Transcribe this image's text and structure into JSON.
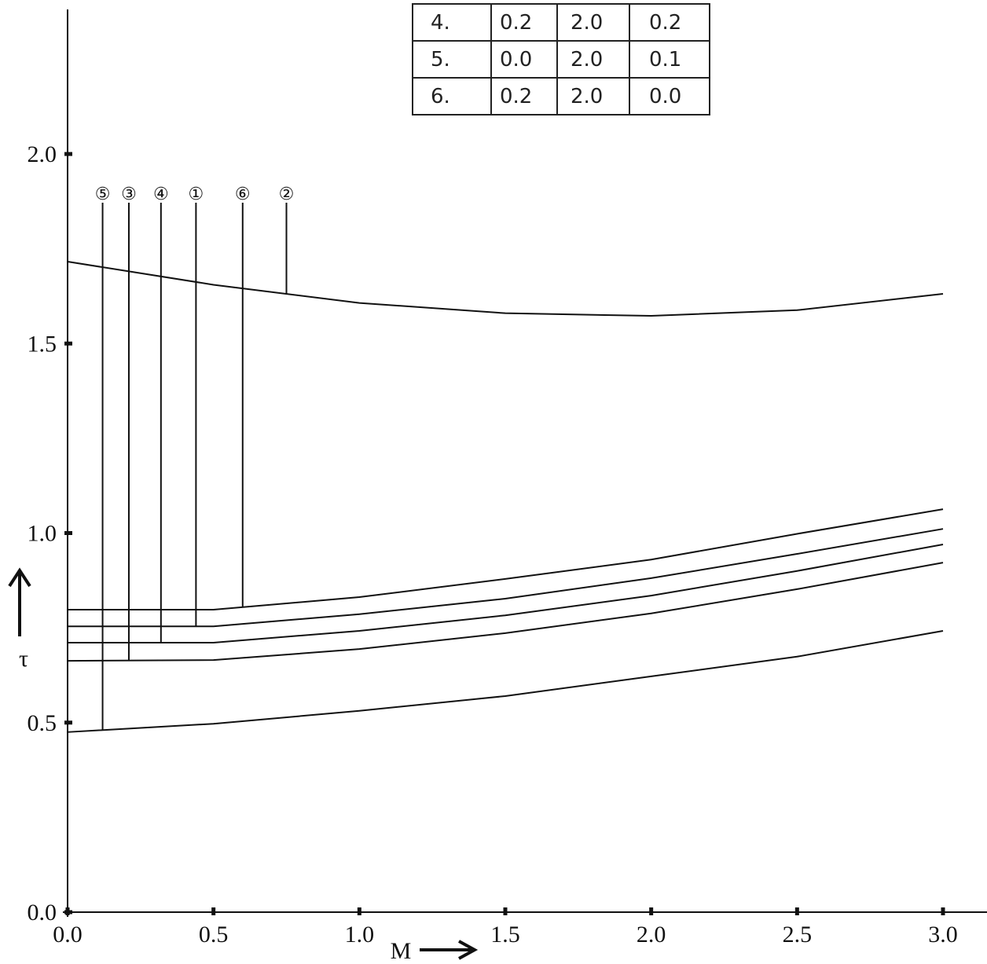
{
  "chart_data": {
    "type": "line",
    "x_label": "M",
    "y_label": "τ",
    "x": [
      0,
      0.5,
      1.0,
      1.5,
      2.0,
      2.5,
      3.0
    ],
    "series": [
      {
        "name": "⑤",
        "color": "#111111",
        "values": [
          0.475,
          0.497,
          0.531,
          0.57,
          0.622,
          0.674,
          0.742
        ]
      },
      {
        "name": "③",
        "color": "#111111",
        "values": [
          0.663,
          0.665,
          0.694,
          0.736,
          0.788,
          0.852,
          0.922
        ]
      },
      {
        "name": "④",
        "color": "#111111",
        "values": [
          0.711,
          0.711,
          0.742,
          0.783,
          0.835,
          0.9,
          0.97
        ]
      },
      {
        "name": "①",
        "color": "#111111",
        "values": [
          0.754,
          0.754,
          0.786,
          0.827,
          0.881,
          0.945,
          1.011
        ]
      },
      {
        "name": "⑥",
        "color": "#111111",
        "values": [
          0.798,
          0.798,
          0.831,
          0.879,
          0.93,
          0.998,
          1.063
        ]
      },
      {
        "name": "②",
        "color": "#111111",
        "values": [
          1.716,
          1.655,
          1.607,
          1.58,
          1.573,
          1.588,
          1.631
        ]
      }
    ],
    "label_x": [
      0.12,
      0.21,
      0.32,
      0.44,
      0.6,
      0.75
    ],
    "xlim": [
      0,
      3.0
    ],
    "ylim": [
      0,
      2.0
    ],
    "xticks": [
      {
        "value": 0,
        "label": "0.0"
      },
      {
        "value": 0.5,
        "label": "0.5"
      },
      {
        "value": 1.0,
        "label": "1.0"
      },
      {
        "value": 1.5,
        "label": "1.5"
      },
      {
        "value": 2.0,
        "label": "2.0"
      },
      {
        "value": 2.5,
        "label": "2.5"
      },
      {
        "value": 3.0,
        "label": "3.0"
      }
    ],
    "yticks": [
      {
        "value": 0,
        "label": "0.0"
      },
      {
        "value": 0.5,
        "label": "0.5"
      },
      {
        "value": 1.0,
        "label": "1.0"
      },
      {
        "value": 1.5,
        "label": "1.5"
      },
      {
        "value": 2.0,
        "label": "2.0"
      }
    ]
  },
  "table": {
    "rows": [
      [
        "4.",
        "0.2",
        "2.0",
        "0.2"
      ],
      [
        "5.",
        "0.0",
        "2.0",
        "0.1"
      ],
      [
        "6.",
        "0.2",
        "2.0",
        "0.0"
      ]
    ]
  }
}
